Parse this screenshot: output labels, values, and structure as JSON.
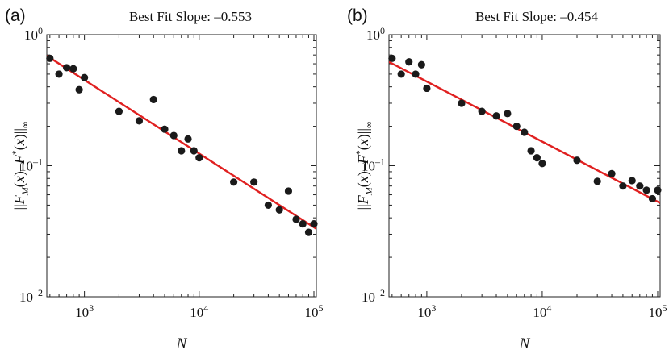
{
  "chart_data": [
    {
      "type": "scatter",
      "panel_label": "(a)",
      "title": "Best Fit Slope: –0.553",
      "xlabel": "N",
      "ylabel": "||F_M(x)–F^*(x)||_∞",
      "x_scale": "log",
      "y_scale": "log",
      "xlim": [
        470,
        105000
      ],
      "ylim": [
        0.01,
        1
      ],
      "x_ticks": [
        {
          "value": 1000,
          "base": "10",
          "exp": "3"
        },
        {
          "value": 10000,
          "base": "10",
          "exp": "4"
        },
        {
          "value": 100000,
          "base": "10",
          "exp": "5"
        }
      ],
      "y_ticks": [
        {
          "value": 1,
          "base": "10",
          "exp": "0"
        },
        {
          "value": 0.1,
          "base": "10",
          "exp": "–1"
        },
        {
          "value": 0.01,
          "base": "10",
          "exp": "–2"
        }
      ],
      "grid": false,
      "marker_color": "#1a1a1a",
      "fit_line_color": "#e02020",
      "fit_line": {
        "x": [
          470,
          105000
        ],
        "y": [
          0.69,
          0.033
        ]
      },
      "points": [
        [
          500,
          0.66
        ],
        [
          600,
          0.5
        ],
        [
          700,
          0.56
        ],
        [
          800,
          0.55
        ],
        [
          900,
          0.38
        ],
        [
          1000,
          0.47
        ],
        [
          2000,
          0.26
        ],
        [
          3000,
          0.22
        ],
        [
          4000,
          0.32
        ],
        [
          5000,
          0.19
        ],
        [
          6000,
          0.17
        ],
        [
          7000,
          0.13
        ],
        [
          8000,
          0.16
        ],
        [
          9000,
          0.13
        ],
        [
          10000,
          0.115
        ],
        [
          20000,
          0.075
        ],
        [
          30000,
          0.075
        ],
        [
          40000,
          0.05
        ],
        [
          50000,
          0.046
        ],
        [
          60000,
          0.064
        ],
        [
          70000,
          0.039
        ],
        [
          80000,
          0.036
        ],
        [
          90000,
          0.031
        ],
        [
          100000,
          0.036
        ]
      ]
    },
    {
      "type": "scatter",
      "panel_label": "(b)",
      "title": "Best Fit Slope: –0.454",
      "xlabel": "N",
      "ylabel": "||F_M(x)–F^*(x)||_∞",
      "x_scale": "log",
      "y_scale": "log",
      "xlim": [
        470,
        105000
      ],
      "ylim": [
        0.01,
        1
      ],
      "x_ticks": [
        {
          "value": 1000,
          "base": "10",
          "exp": "3"
        },
        {
          "value": 10000,
          "base": "10",
          "exp": "4"
        },
        {
          "value": 100000,
          "base": "10",
          "exp": "5"
        }
      ],
      "y_ticks": [
        {
          "value": 1,
          "base": "10",
          "exp": "0"
        },
        {
          "value": 0.1,
          "base": "10",
          "exp": "–1"
        },
        {
          "value": 0.01,
          "base": "10",
          "exp": "–2"
        }
      ],
      "grid": false,
      "marker_color": "#1a1a1a",
      "fit_line_color": "#e02020",
      "fit_line": {
        "x": [
          470,
          105000
        ],
        "y": [
          0.62,
          0.052
        ]
      },
      "points": [
        [
          500,
          0.66
        ],
        [
          600,
          0.5
        ],
        [
          700,
          0.62
        ],
        [
          800,
          0.5
        ],
        [
          900,
          0.59
        ],
        [
          1000,
          0.39
        ],
        [
          2000,
          0.3
        ],
        [
          3000,
          0.26
        ],
        [
          4000,
          0.24
        ],
        [
          5000,
          0.25
        ],
        [
          6000,
          0.2
        ],
        [
          7000,
          0.18
        ],
        [
          8000,
          0.13
        ],
        [
          9000,
          0.115
        ],
        [
          10000,
          0.104
        ],
        [
          20000,
          0.11
        ],
        [
          30000,
          0.076
        ],
        [
          40000,
          0.087
        ],
        [
          50000,
          0.07
        ],
        [
          60000,
          0.077
        ],
        [
          70000,
          0.07
        ],
        [
          80000,
          0.065
        ],
        [
          90000,
          0.056
        ],
        [
          100000,
          0.065
        ]
      ]
    }
  ]
}
